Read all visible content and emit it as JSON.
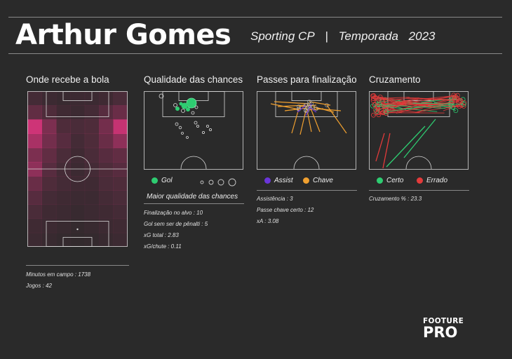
{
  "header": {
    "player_name": "Arthur Gomes",
    "club": "Sporting CP",
    "separator": "|",
    "season_label": "Temporada",
    "season_year": "2023"
  },
  "sections": {
    "receives": "Onde recebe a bola",
    "chances": "Qualidade das chances",
    "passes": "Passes para finalização",
    "crosses": "Cruzamento"
  },
  "legends": {
    "goal": "Gol",
    "quality": "Maior qualidade das chances",
    "assist": "Assist",
    "key": "Chave",
    "correct": "Certo",
    "wrong": "Errado"
  },
  "colors": {
    "goal": "#2ecc71",
    "assist": "#6a35d9",
    "key": "#f0a030",
    "correct": "#2ecc71",
    "wrong": "#e33b3b",
    "heat": "#e0357f"
  },
  "stats": {
    "minutes": "Minutos em campo : 1738",
    "games": "Jogos : 42",
    "shots_on_target": "Finalização no alvo :  10",
    "goals_non_penalty": "Gol sem ser de pênalti :  5",
    "xg_total": "xG total :  2.83",
    "xg_per_shot": "xG/chute :  0.11",
    "assists": "Assistência :  3",
    "key_passes": "Passe chave certo :  12",
    "xa": "xA :  3.08",
    "cross_pct": "Cruzamento % :  23.3"
  },
  "logo": {
    "line1": "FOOTURE",
    "line2": "PRO"
  }
}
